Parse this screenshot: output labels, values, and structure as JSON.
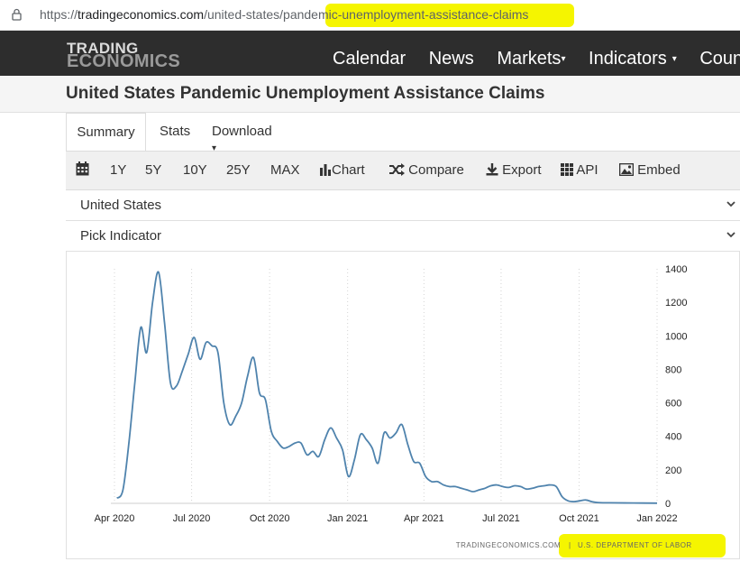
{
  "browser": {
    "url_scheme": "https://",
    "url_host": "tradingeconomics.com",
    "url_path": "/united-states/pandemic-unemployment-assistance-claims"
  },
  "nav": {
    "logo_line1": "TRADING",
    "logo_line2": "ECONOMICS",
    "items": [
      "Calendar",
      "News",
      "Markets",
      "Indicators",
      "Countri"
    ]
  },
  "page": {
    "title": "United States Pandemic Unemployment Assistance Claims"
  },
  "tabs": [
    "Summary",
    "Stats",
    "Download"
  ],
  "toolbar": {
    "ranges": [
      "1Y",
      "5Y",
      "10Y",
      "25Y",
      "MAX"
    ],
    "actions": [
      "Chart",
      "Compare",
      "Export",
      "API",
      "Embed"
    ]
  },
  "selectors": {
    "country": "United States",
    "indicator": "Pick Indicator"
  },
  "source": {
    "site": "TRADINGECONOMICS.COM",
    "separator": "|",
    "agency": "U.S. DEPARTMENT OF LABOR"
  },
  "highlight_color": "#f5f500",
  "chart_data": {
    "type": "line",
    "x_tick_labels": [
      "Apr 2020",
      "Jul 2020",
      "Oct 2020",
      "Jan 2021",
      "Apr 2021",
      "Jul 2021",
      "Oct 2021",
      "Jan 2022"
    ],
    "y_tick_labels": [
      "1400",
      "1200",
      "1000",
      "800",
      "600",
      "400",
      "200",
      "0"
    ],
    "ylim": [
      0,
      1400
    ],
    "grid": "vertical dotted",
    "line_color": "#4f83ad",
    "series": [
      {
        "values": [
          [
            "2020-04-04",
            30
          ],
          [
            "2020-04-11",
            80
          ],
          [
            "2020-04-18",
            360
          ],
          [
            "2020-04-25",
            720
          ],
          [
            "2020-05-02",
            1050
          ],
          [
            "2020-05-09",
            900
          ],
          [
            "2020-05-16",
            1200
          ],
          [
            "2020-05-23",
            1380
          ],
          [
            "2020-05-30",
            1080
          ],
          [
            "2020-06-06",
            720
          ],
          [
            "2020-06-13",
            700
          ],
          [
            "2020-06-20",
            790
          ],
          [
            "2020-06-27",
            890
          ],
          [
            "2020-07-04",
            990
          ],
          [
            "2020-07-11",
            860
          ],
          [
            "2020-07-18",
            960
          ],
          [
            "2020-07-25",
            940
          ],
          [
            "2020-08-01",
            900
          ],
          [
            "2020-08-08",
            600
          ],
          [
            "2020-08-15",
            470
          ],
          [
            "2020-08-22",
            520
          ],
          [
            "2020-08-29",
            600
          ],
          [
            "2020-09-05",
            760
          ],
          [
            "2020-09-12",
            870
          ],
          [
            "2020-09-19",
            660
          ],
          [
            "2020-09-26",
            620
          ],
          [
            "2020-10-03",
            430
          ],
          [
            "2020-10-10",
            370
          ],
          [
            "2020-10-17",
            330
          ],
          [
            "2020-10-24",
            340
          ],
          [
            "2020-10-31",
            360
          ],
          [
            "2020-11-07",
            360
          ],
          [
            "2020-11-14",
            290
          ],
          [
            "2020-11-21",
            310
          ],
          [
            "2020-11-28",
            280
          ],
          [
            "2020-12-05",
            380
          ],
          [
            "2020-12-12",
            450
          ],
          [
            "2020-12-19",
            390
          ],
          [
            "2020-12-26",
            320
          ],
          [
            "2021-01-02",
            160
          ],
          [
            "2021-01-09",
            260
          ],
          [
            "2021-01-16",
            410
          ],
          [
            "2021-01-23",
            380
          ],
          [
            "2021-01-30",
            330
          ],
          [
            "2021-02-06",
            240
          ],
          [
            "2021-02-13",
            420
          ],
          [
            "2021-02-20",
            390
          ],
          [
            "2021-02-27",
            420
          ],
          [
            "2021-03-06",
            470
          ],
          [
            "2021-03-13",
            350
          ],
          [
            "2021-03-20",
            250
          ],
          [
            "2021-03-27",
            240
          ],
          [
            "2021-04-03",
            160
          ],
          [
            "2021-04-10",
            130
          ],
          [
            "2021-04-17",
            130
          ],
          [
            "2021-04-24",
            110
          ],
          [
            "2021-05-01",
            100
          ],
          [
            "2021-05-08",
            100
          ],
          [
            "2021-05-15",
            90
          ],
          [
            "2021-05-22",
            80
          ],
          [
            "2021-05-29",
            70
          ],
          [
            "2021-06-05",
            80
          ],
          [
            "2021-06-12",
            90
          ],
          [
            "2021-06-19",
            105
          ],
          [
            "2021-06-26",
            110
          ],
          [
            "2021-07-03",
            100
          ],
          [
            "2021-07-10",
            95
          ],
          [
            "2021-07-17",
            105
          ],
          [
            "2021-07-24",
            100
          ],
          [
            "2021-07-31",
            85
          ],
          [
            "2021-08-07",
            90
          ],
          [
            "2021-08-14",
            100
          ],
          [
            "2021-08-21",
            105
          ],
          [
            "2021-08-28",
            110
          ],
          [
            "2021-09-04",
            100
          ],
          [
            "2021-09-11",
            40
          ],
          [
            "2021-09-18",
            15
          ],
          [
            "2021-09-25",
            10
          ],
          [
            "2021-10-02",
            15
          ],
          [
            "2021-10-09",
            20
          ],
          [
            "2021-10-16",
            10
          ],
          [
            "2021-10-23",
            5
          ],
          [
            "2021-11-06",
            3
          ],
          [
            "2021-12-04",
            2
          ],
          [
            "2022-01-01",
            1
          ]
        ]
      }
    ]
  }
}
